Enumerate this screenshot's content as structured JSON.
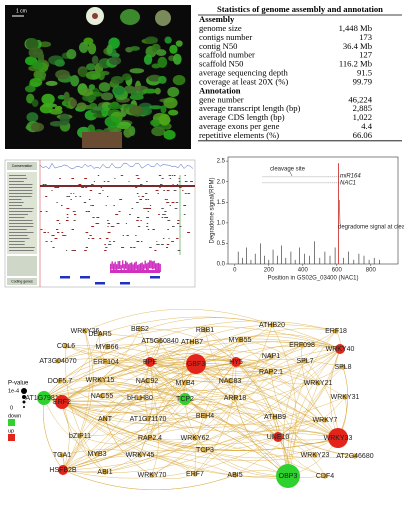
{
  "photo": {
    "scale_label": "1 cm"
  },
  "table": {
    "title": "Statistics of genome assembly and annotation",
    "sections": [
      {
        "heading": "Assembly",
        "rows": [
          [
            "genome size",
            "1,448 Mb"
          ],
          [
            "contigs number",
            "173"
          ],
          [
            "contig N50",
            "36.4 Mb"
          ],
          [
            "scaffold number",
            "127"
          ],
          [
            "scaffold N50",
            "116.2 Mb"
          ],
          [
            "average sequencing depth",
            "91.5"
          ],
          [
            "coverage at least 20X (%)",
            "99.79"
          ]
        ]
      },
      {
        "heading": "Annotation",
        "rows": [
          [
            "gene number",
            "46,224"
          ],
          [
            "average transcript length (bp)",
            "2,885"
          ],
          [
            "average CDS length (bp)",
            "1,022"
          ],
          [
            "average exons per gene",
            "4.4"
          ],
          [
            "repetitive elements (%)",
            "66.06"
          ]
        ]
      }
    ]
  },
  "browser": {
    "track_labels": [
      "Conservation",
      "Coding genes"
    ]
  },
  "degradome": {
    "ylabel": "Degradome signal(RPM)",
    "xlabel": "Position in GS02G_03400 (NAC1)",
    "annotations": {
      "cleavage": "cleavage site",
      "mirna": "miR164",
      "target": "NAC1",
      "signal": "degradome signal at cleavage site"
    },
    "xlim": [
      -40,
      960
    ],
    "ylim": [
      0,
      2.6
    ],
    "xticks": [
      0,
      200,
      400,
      600,
      800
    ],
    "yticks": [
      {
        "value": 0,
        "label": "0.0"
      },
      {
        "value": 0.5,
        "label": "0.5"
      },
      {
        "value": 1,
        "label": "1.0"
      },
      {
        "value": 1.5,
        "label": "1.5"
      },
      {
        "value": 2,
        "label": "2.0"
      },
      {
        "value": 2.5,
        "label": "2.5"
      }
    ],
    "cleavage_x": 610,
    "cleavage_y": 2.45,
    "signals_x": [
      20,
      45,
      70,
      95,
      120,
      150,
      175,
      200,
      225,
      250,
      275,
      300,
      330,
      355,
      380,
      410,
      440,
      470,
      500,
      530,
      560,
      590,
      640,
      670,
      700,
      730,
      760,
      790,
      820,
      850
    ],
    "signals_y": [
      0.3,
      0.15,
      0.4,
      0.1,
      0.25,
      0.5,
      0.2,
      0.1,
      0.35,
      0.2,
      0.45,
      0.15,
      0.3,
      0.1,
      0.4,
      0.25,
      0.2,
      0.55,
      0.15,
      0.3,
      0.2,
      0.4,
      0.15,
      0.3,
      0.1,
      0.25,
      0.2,
      0.1,
      0.15,
      0.1
    ]
  },
  "network": {
    "legend": {
      "title": "P-value",
      "size_labels": [
        "1e-4",
        "0"
      ],
      "down": "down",
      "up": "up"
    },
    "nodes": [
      {
        "label": "WRKY26"
      },
      {
        "label": "DEAR5"
      },
      {
        "label": "BES2"
      },
      {
        "label": "RBB1"
      },
      {
        "label": "ATHB20"
      },
      {
        "label": "ERF18"
      },
      {
        "label": "COL6"
      },
      {
        "label": "MYB66"
      },
      {
        "label": "AT5G60840"
      },
      {
        "label": "ATHB7"
      },
      {
        "label": "MYB55"
      },
      {
        "label": "ERF098"
      },
      {
        "label": "WRKY40",
        "status": "up"
      },
      {
        "label": "AT3G04070"
      },
      {
        "label": "ERF104"
      },
      {
        "label": "BPE",
        "status": "up"
      },
      {
        "label": "GBF3",
        "status": "up"
      },
      {
        "label": "HY5",
        "status": "up"
      },
      {
        "label": "NAP1"
      },
      {
        "label": "SPL7"
      },
      {
        "label": "SPL8"
      },
      {
        "label": "DOF5.7"
      },
      {
        "label": "WRKY15"
      },
      {
        "label": "NAC92"
      },
      {
        "label": "MYB4"
      },
      {
        "label": "NAC83"
      },
      {
        "label": "RAP2.1"
      },
      {
        "label": "WRKY21"
      },
      {
        "label": "AT1G79810",
        "status": "down"
      },
      {
        "label": "NAC55"
      },
      {
        "label": "bHLH80"
      },
      {
        "label": "TCP2",
        "status": "down"
      },
      {
        "label": "ARR18"
      },
      {
        "label": "WRKY31"
      },
      {
        "label": "ERF2",
        "status": "up"
      },
      {
        "label": "ANT"
      },
      {
        "label": "AT1G71170"
      },
      {
        "label": "BEH4"
      },
      {
        "label": "ATHB9"
      },
      {
        "label": "WRKY7"
      },
      {
        "label": "WRKY33",
        "status": "up"
      },
      {
        "label": "bZIP11"
      },
      {
        "label": "RAP2.4"
      },
      {
        "label": "WRKY62"
      },
      {
        "label": "TCP3"
      },
      {
        "label": "UNE10",
        "status": "up"
      },
      {
        "label": "MYB3"
      },
      {
        "label": "WRKY45"
      },
      {
        "label": "WRKY23"
      },
      {
        "label": "AT2G46680"
      },
      {
        "label": "TGA1"
      },
      {
        "label": "HSFB2B",
        "status": "up"
      },
      {
        "label": "ABI1"
      },
      {
        "label": "WRKY70"
      },
      {
        "label": "ERF7"
      },
      {
        "label": "ABI5"
      },
      {
        "label": "OBP3",
        "status": "down"
      },
      {
        "label": "CDF4"
      }
    ]
  }
}
